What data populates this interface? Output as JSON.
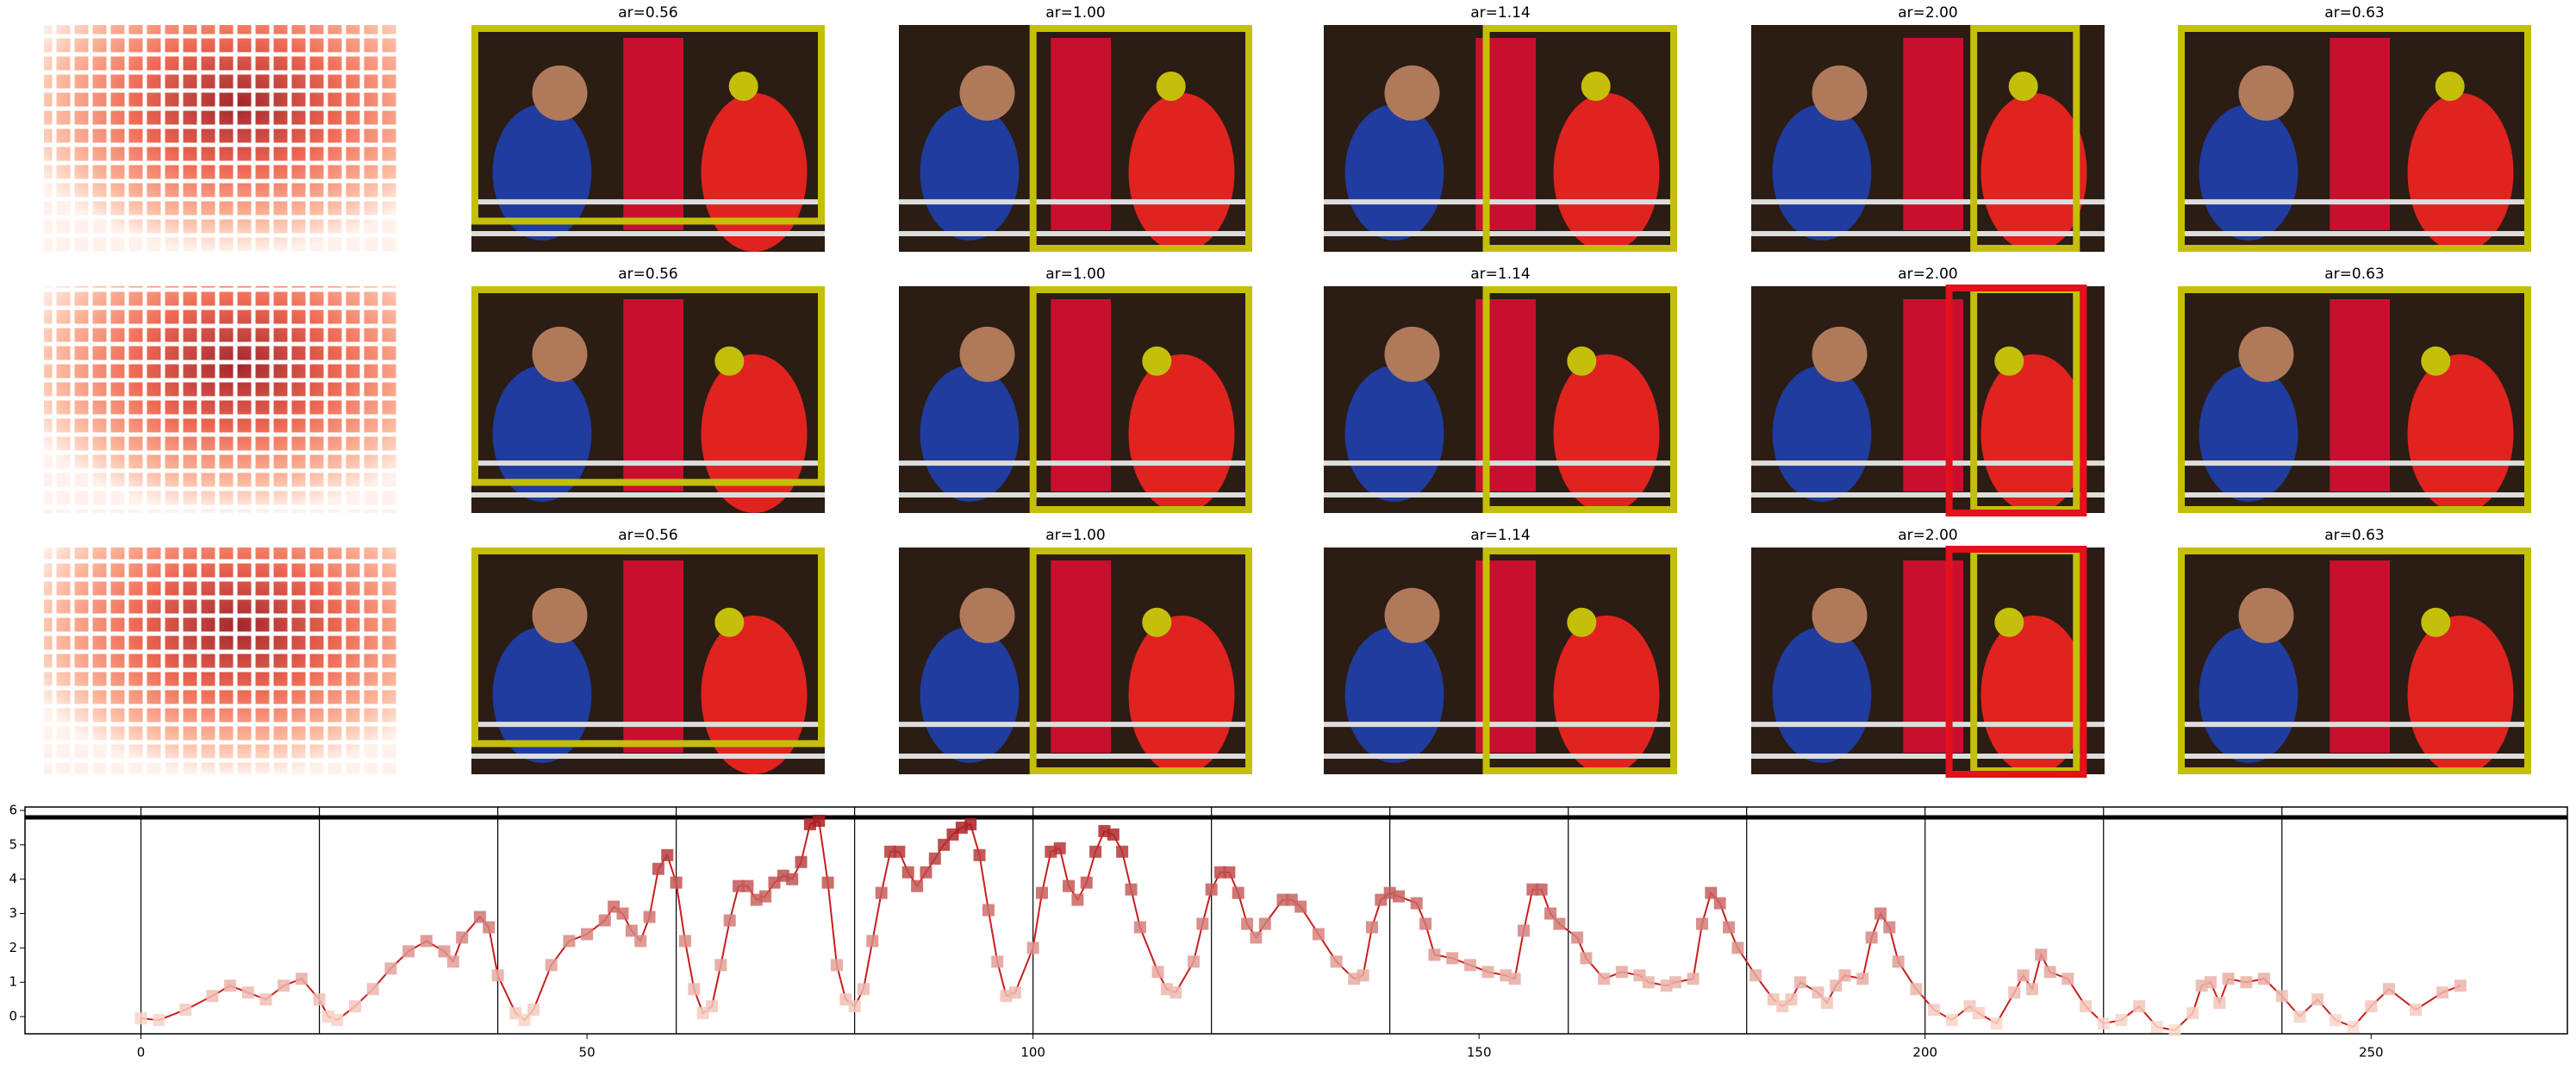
{
  "figure": {
    "panel_titles": [
      [
        "ar=0.56",
        "ar=1.00",
        "ar=1.14",
        "ar=2.00",
        "ar=0.63"
      ],
      [
        "ar=0.56",
        "ar=1.00",
        "ar=1.14",
        "ar=2.00",
        "ar=0.63"
      ],
      [
        "ar=0.56",
        "ar=1.00",
        "ar=1.14",
        "ar=2.00",
        "ar=0.63"
      ]
    ]
  },
  "chart_data": {
    "type": "line",
    "color": "#c81e1e",
    "x": [
      0,
      2,
      5,
      8,
      10,
      12,
      14,
      16,
      18,
      20,
      21,
      22,
      24,
      26,
      28,
      30,
      32,
      34,
      35,
      36,
      38,
      39,
      40,
      42,
      43,
      44,
      46,
      48,
      50,
      52,
      53,
      54,
      55,
      56,
      57,
      58,
      59,
      60,
      61,
      62,
      63,
      64,
      65,
      66,
      67,
      68,
      69,
      70,
      71,
      72,
      73,
      74,
      75,
      76,
      77,
      78,
      79,
      80,
      81,
      82,
      83,
      84,
      85,
      86,
      87,
      88,
      89,
      90,
      91,
      92,
      93,
      94,
      95,
      96,
      97,
      98,
      100,
      101,
      102,
      103,
      104,
      105,
      106,
      107,
      108,
      109,
      110,
      111,
      112,
      114,
      115,
      116,
      118,
      119,
      120,
      121,
      122,
      123,
      124,
      125,
      126,
      128,
      129,
      130,
      132,
      134,
      136,
      137,
      138,
      139,
      140,
      141,
      143,
      144,
      145,
      147,
      149,
      151,
      153,
      154,
      155,
      156,
      157,
      158,
      159,
      161,
      162,
      164,
      166,
      168,
      169,
      171,
      172,
      174,
      175,
      176,
      177,
      178,
      179,
      181,
      183,
      184,
      185,
      186,
      188,
      189,
      190,
      191,
      193,
      194,
      195,
      196,
      197,
      199,
      201,
      203,
      205,
      206,
      208,
      210,
      211,
      212,
      213,
      214,
      216,
      218,
      220,
      222,
      224,
      226,
      228,
      230,
      231,
      232,
      233,
      234,
      236,
      238,
      240,
      242,
      244,
      246,
      248,
      250,
      252,
      255,
      258,
      260
    ],
    "values": [
      -0.05,
      -0.1,
      0.2,
      0.6,
      0.9,
      0.7,
      0.5,
      0.9,
      1.1,
      0.5,
      0,
      -0.1,
      0.3,
      0.8,
      1.4,
      1.9,
      2.2,
      1.9,
      1.6,
      2.3,
      2.9,
      2.6,
      1.2,
      0.1,
      -0.1,
      0.2,
      1.5,
      2.2,
      2.4,
      2.8,
      3.2,
      3.0,
      2.5,
      2.2,
      2.9,
      4.3,
      4.7,
      3.9,
      2.2,
      0.8,
      0.1,
      0.3,
      1.5,
      2.8,
      3.8,
      3.8,
      3.4,
      3.5,
      3.9,
      4.1,
      4.0,
      4.5,
      5.6,
      5.7,
      3.9,
      1.5,
      0.5,
      0.3,
      0.8,
      2.2,
      3.6,
      4.8,
      4.8,
      4.2,
      3.8,
      4.2,
      4.6,
      5.0,
      5.3,
      5.5,
      5.6,
      4.7,
      3.1,
      1.6,
      0.6,
      0.7,
      2.0,
      3.6,
      4.8,
      4.9,
      3.8,
      3.4,
      3.9,
      4.8,
      5.4,
      5.3,
      4.8,
      3.7,
      2.6,
      1.3,
      0.8,
      0.7,
      1.6,
      2.7,
      3.7,
      4.2,
      4.2,
      3.6,
      2.7,
      2.3,
      2.7,
      3.4,
      3.4,
      3.2,
      2.4,
      1.6,
      1.1,
      1.2,
      2.6,
      3.4,
      3.6,
      3.5,
      3.3,
      2.7,
      1.8,
      1.7,
      1.5,
      1.3,
      1.2,
      1.1,
      2.5,
      3.7,
      3.7,
      3.0,
      2.7,
      2.3,
      1.7,
      1.1,
      1.3,
      1.2,
      1.0,
      0.9,
      1.0,
      1.1,
      2.7,
      3.6,
      3.3,
      2.6,
      2.0,
      1.2,
      0.5,
      0.3,
      0.5,
      1.0,
      0.7,
      0.4,
      0.9,
      1.2,
      1.1,
      2.3,
      3.0,
      2.6,
      1.6,
      0.8,
      0.2,
      -0.1,
      0.3,
      0.1,
      -0.2,
      0.7,
      1.2,
      0.8,
      1.8,
      1.3,
      1.1,
      0.3,
      -0.2,
      -0.1,
      0.3,
      -0.3,
      -0.4,
      0.1,
      0.9,
      1.0,
      0.4,
      1.1,
      1.0,
      1.1,
      0.6,
      0.0,
      0.5,
      -0.1,
      -0.3,
      0.3,
      0.8,
      0.2,
      0.7,
      0.9
    ],
    "xlim": [
      -13,
      272
    ],
    "ylim": [
      -0.5,
      6.1
    ],
    "xticks": [
      0,
      50,
      100,
      150,
      200,
      250
    ],
    "yticks": [
      0,
      1,
      2,
      3,
      4,
      5,
      6
    ],
    "vlines": [
      0,
      20,
      40,
      60,
      80,
      100,
      120,
      140,
      160,
      180,
      200,
      220,
      240
    ],
    "hline": 5.8
  }
}
